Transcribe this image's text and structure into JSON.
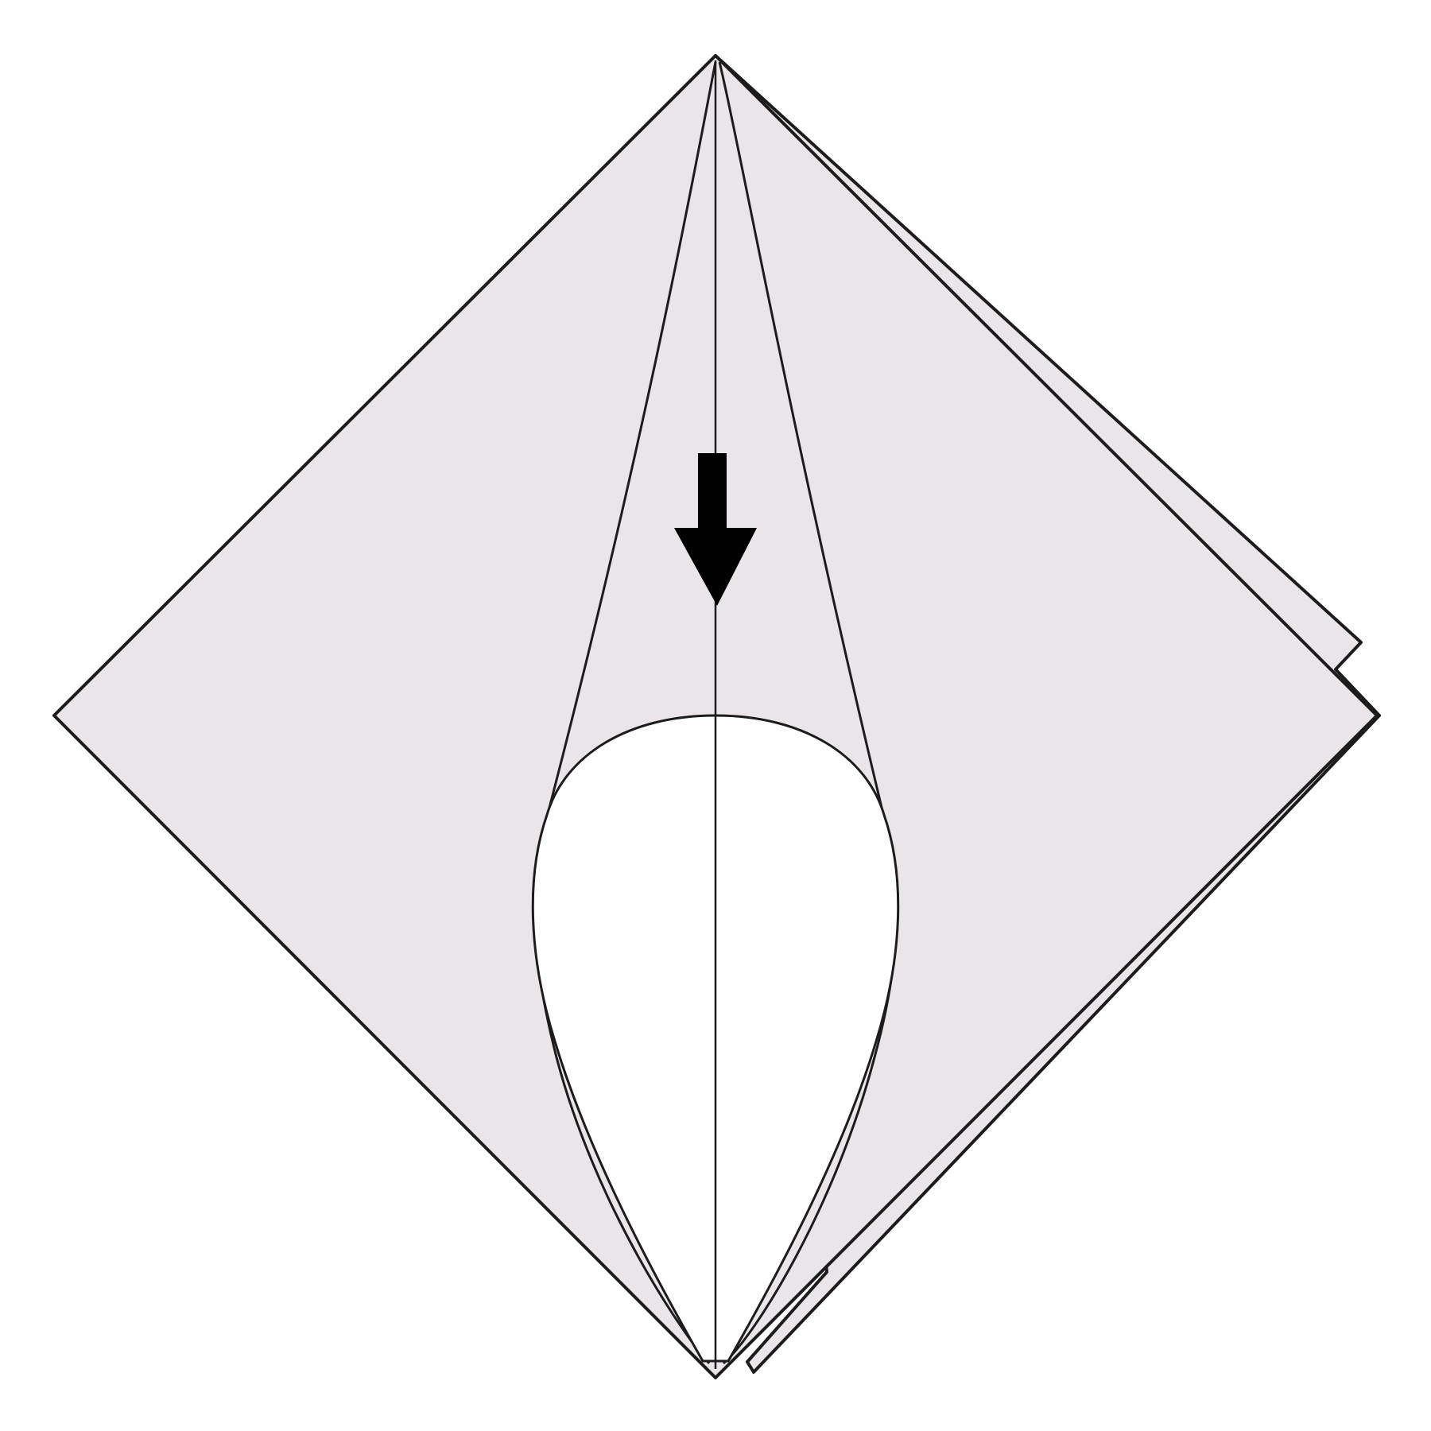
{
  "diagram": {
    "kind": "origami-fold-step",
    "colors": {
      "background": "#ffffff",
      "paper": "#e9e5e9",
      "opening": "#ffffff",
      "line": "#1c1c1c",
      "arrow": "#000000"
    },
    "icons": {
      "fold_arrow": "arrow-down-icon"
    }
  }
}
